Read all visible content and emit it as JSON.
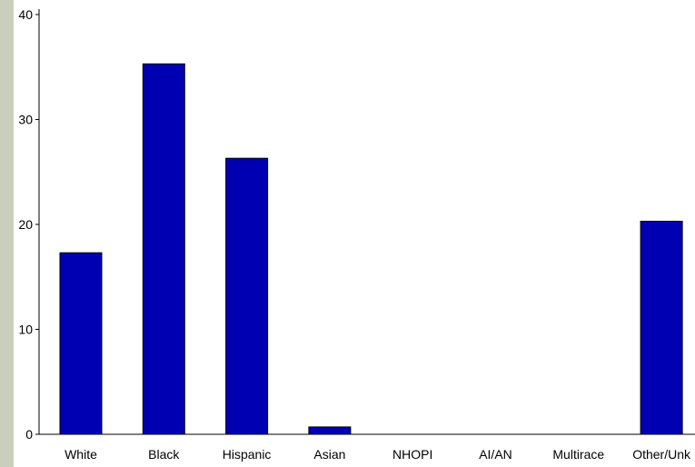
{
  "chart_data": {
    "type": "bar",
    "title": "",
    "xlabel": "",
    "ylabel": "",
    "categories": [
      "White",
      "Black",
      "Hispanic",
      "Asian",
      "NHOPI",
      "AI/AN",
      "Multirace",
      "Other/Unk"
    ],
    "values": [
      17.3,
      35.3,
      26.3,
      0.7,
      0,
      0,
      0,
      20.3
    ],
    "ylim": [
      0,
      40
    ],
    "yticks": [
      0,
      10,
      20,
      30,
      40
    ],
    "grid": false,
    "legend": "none",
    "bar_color": "#0000b3",
    "bar_outline_color": "#000000"
  },
  "colors": {
    "left_strip": "#c9cfbc",
    "background": "#ffffff"
  }
}
